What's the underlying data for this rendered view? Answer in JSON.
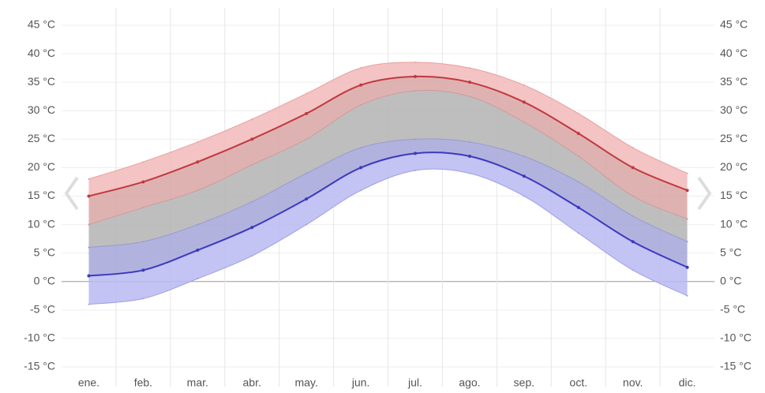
{
  "chart_data": {
    "type": "line",
    "categories": [
      "ene.",
      "feb.",
      "mar.",
      "abr.",
      "may.",
      "jun.",
      "jul.",
      "ago.",
      "sep.",
      "oct.",
      "nov.",
      "dic."
    ],
    "series": [
      {
        "color": "#e8a0a0",
        "values": [
          18,
          21,
          24.5,
          28.5,
          33,
          37.5,
          38.5,
          37.5,
          34.5,
          29.5,
          23.5,
          19
        ]
      },
      {
        "color": "#c0393f",
        "values": [
          15,
          17.5,
          21,
          25,
          29.5,
          34.5,
          36,
          35,
          31.5,
          26,
          20,
          16
        ]
      },
      {
        "color": "#d09a9a",
        "values": [
          10,
          13,
          16,
          20.5,
          25,
          31,
          33.5,
          32.5,
          28,
          22,
          15,
          11
        ]
      },
      {
        "color": "#9a9ad0",
        "values": [
          6,
          7,
          10,
          14,
          19,
          23.5,
          25,
          24.5,
          22,
          17.5,
          11.5,
          7
        ]
      },
      {
        "color": "#3a3ac0",
        "values": [
          1,
          2,
          5.5,
          9.5,
          14.5,
          20,
          22.5,
          22,
          18.5,
          13,
          7,
          2.5
        ]
      },
      {
        "color": "#a0a0e8",
        "values": [
          -4,
          -3,
          0.5,
          4.5,
          10,
          16,
          19.5,
          19,
          15,
          8.5,
          2,
          -2.5
        ]
      }
    ],
    "fills": [
      "#f2b8b8",
      "#d9a5a5",
      "#b3b3b3",
      "#a5a5d9",
      "#b8b8f2"
    ],
    "ylim": [
      -15,
      45
    ],
    "yticks": [
      {
        "value": -15,
        "label": "-15 °C"
      },
      {
        "value": -10,
        "label": "-10 °C"
      },
      {
        "value": -5,
        "label": "-5 °C"
      },
      {
        "value": 0,
        "label": "0 °C"
      },
      {
        "value": 5,
        "label": "5 °C"
      },
      {
        "value": 10,
        "label": "10 °C"
      },
      {
        "value": 15,
        "label": "15 °C"
      },
      {
        "value": 20,
        "label": "20 °C"
      },
      {
        "value": 25,
        "label": "25 °C"
      },
      {
        "value": 30,
        "label": "30 °C"
      },
      {
        "value": 35,
        "label": "35 °C"
      },
      {
        "value": 40,
        "label": "40 °C"
      },
      {
        "value": 45,
        "label": "45 °C"
      }
    ],
    "grid": true
  }
}
